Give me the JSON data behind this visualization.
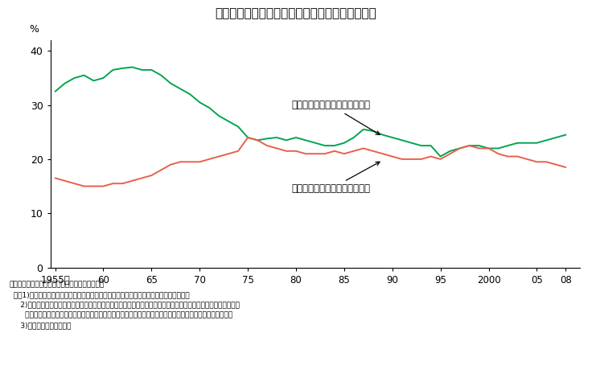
{
  "title": "図４－１　三大都市圏と地方圏の人口移動の推移",
  "title_bg_color": "#f2a0a8",
  "xlabel_ticks": [
    "1955年",
    "60",
    "65",
    "70",
    "75",
    "80",
    "85",
    "90",
    "95",
    "2000",
    "05",
    "08"
  ],
  "xlabel_values": [
    1955,
    1960,
    1965,
    1970,
    1975,
    1980,
    1985,
    1990,
    1995,
    2000,
    2005,
    2008
  ],
  "ylim": [
    0,
    42
  ],
  "yticks": [
    0,
    10,
    20,
    30,
    40
  ],
  "ylabel_text": "%",
  "green_label": "地方圏から三大都市圏への移動",
  "red_label": "三大都市圏から地方圏への移動",
  "green_color": "#00a550",
  "red_color": "#e8604c",
  "source_line1": "資料：総務省「住民基本台帳人口移動報告年報」",
  "source_line2": "  注：1)各年の移動人口における三大都市圏から地方圏、地方圏から三大都市圏の人口割合",
  "source_line3": "     2)三大都市圏は、東京圏（埼玉県、千葉県、東京都、神奈川県の１都３県）、名古屋圏（岐阜県、愛知県、三重",
  "source_line4": "       県の３県）、大阪圏（京都府、大阪府、兵庫県、奈良県の２府２県）であり、地方圏とはこれらを除く道県",
  "source_line5": "     3)日本人のみの算出結果",
  "green_x": [
    1955,
    1956,
    1957,
    1958,
    1959,
    1960,
    1961,
    1962,
    1963,
    1964,
    1965,
    1966,
    1967,
    1968,
    1969,
    1970,
    1971,
    1972,
    1973,
    1974,
    1975,
    1976,
    1977,
    1978,
    1979,
    1980,
    1981,
    1982,
    1983,
    1984,
    1985,
    1986,
    1987,
    1988,
    1989,
    1990,
    1991,
    1992,
    1993,
    1994,
    1995,
    1996,
    1997,
    1998,
    1999,
    2000,
    2001,
    2002,
    2003,
    2004,
    2005,
    2006,
    2007,
    2008
  ],
  "green_y": [
    32.5,
    34.0,
    35.0,
    35.5,
    34.5,
    35.0,
    36.5,
    36.8,
    37.0,
    36.5,
    36.5,
    35.5,
    34.0,
    33.0,
    32.0,
    30.5,
    29.5,
    28.0,
    27.0,
    26.0,
    24.0,
    23.5,
    23.8,
    24.0,
    23.5,
    24.0,
    23.5,
    23.0,
    22.5,
    22.5,
    23.0,
    24.0,
    25.5,
    25.2,
    24.5,
    24.0,
    23.5,
    23.0,
    22.5,
    22.5,
    20.5,
    21.5,
    22.0,
    22.5,
    22.5,
    22.0,
    22.0,
    22.5,
    23.0,
    23.0,
    23.0,
    23.5,
    24.0,
    24.5
  ],
  "red_x": [
    1955,
    1956,
    1957,
    1958,
    1959,
    1960,
    1961,
    1962,
    1963,
    1964,
    1965,
    1966,
    1967,
    1968,
    1969,
    1970,
    1971,
    1972,
    1973,
    1974,
    1975,
    1976,
    1977,
    1978,
    1979,
    1980,
    1981,
    1982,
    1983,
    1984,
    1985,
    1986,
    1987,
    1988,
    1989,
    1990,
    1991,
    1992,
    1993,
    1994,
    1995,
    1996,
    1997,
    1998,
    1999,
    2000,
    2001,
    2002,
    2003,
    2004,
    2005,
    2006,
    2007,
    2008
  ],
  "red_y": [
    16.5,
    16.0,
    15.5,
    15.0,
    15.0,
    15.0,
    15.5,
    15.5,
    16.0,
    16.5,
    17.0,
    18.0,
    19.0,
    19.5,
    19.5,
    19.5,
    20.0,
    20.5,
    21.0,
    21.5,
    24.0,
    23.5,
    22.5,
    22.0,
    21.5,
    21.5,
    21.0,
    21.0,
    21.0,
    21.5,
    21.0,
    21.5,
    22.0,
    21.5,
    21.0,
    20.5,
    20.0,
    20.0,
    20.0,
    20.5,
    20.0,
    21.0,
    22.0,
    22.5,
    22.0,
    22.0,
    21.0,
    20.5,
    20.5,
    20.0,
    19.5,
    19.5,
    19.0,
    18.5
  ]
}
